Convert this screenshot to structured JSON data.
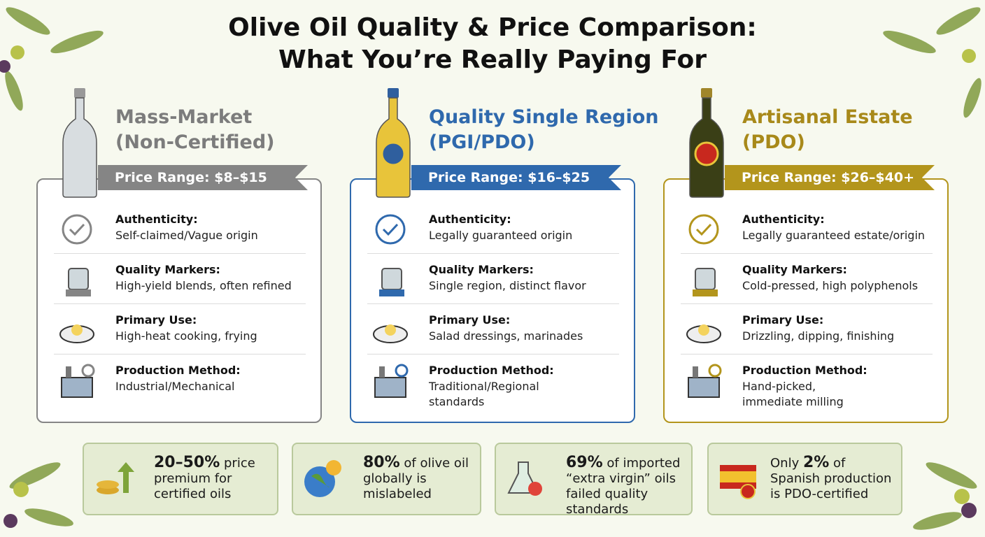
{
  "header": {
    "title_line1": "Olive Oil Quality & Price Comparison:",
    "title_line2": "What You’re Really Paying For"
  },
  "tiers": [
    {
      "name_line1": "Mass-Market",
      "name_line2": "(Non-Certified)",
      "price": "Price Range: $8–$15",
      "rows": [
        {
          "label": "Authenticity:",
          "text": "Self-claimed/Vague origin"
        },
        {
          "label": "Quality Markers:",
          "text": "High-yield blends, often refined"
        },
        {
          "label": "Primary Use:",
          "text": "High-heat cooking, frying"
        },
        {
          "label": "Production Method:",
          "text": "Industrial/Mechanical"
        }
      ]
    },
    {
      "name_line1": "Quality Single Region",
      "name_line2": "(PGI/PDO)",
      "price": "Price Range: $16–$25",
      "rows": [
        {
          "label": "Authenticity:",
          "text": "Legally guaranteed origin"
        },
        {
          "label": "Quality Markers:",
          "text": "Single region, distinct flavor"
        },
        {
          "label": "Primary Use:",
          "text": "Salad dressings, marinades"
        },
        {
          "label": "Production Method:",
          "text": "Traditional/Regional standards"
        }
      ]
    },
    {
      "name_line1": "Artisanal Estate",
      "name_line2": "(PDO)",
      "price": "Price Range: $26–$40+",
      "rows": [
        {
          "label": "Authenticity:",
          "text": "Legally guaranteed estate/origin"
        },
        {
          "label": "Quality Markers:",
          "text": "Cold-pressed, high polyphenols"
        },
        {
          "label": "Primary Use:",
          "text": "Drizzling, dipping, finishing"
        },
        {
          "label": "Production Method:",
          "text": "Hand-picked, immediate milling"
        }
      ]
    }
  ],
  "stats": [
    {
      "highlight": "20–50%",
      "text": " price premium for certified oils"
    },
    {
      "highlight": "80%",
      "text": " of olive oil globally is mislabeled"
    },
    {
      "highlight": "69%",
      "text": " of imported “extra virgin” oils failed quality standards"
    },
    {
      "prefix": "Only ",
      "highlight": "2%",
      "text": " of Spanish production is PDO-certified"
    }
  ]
}
